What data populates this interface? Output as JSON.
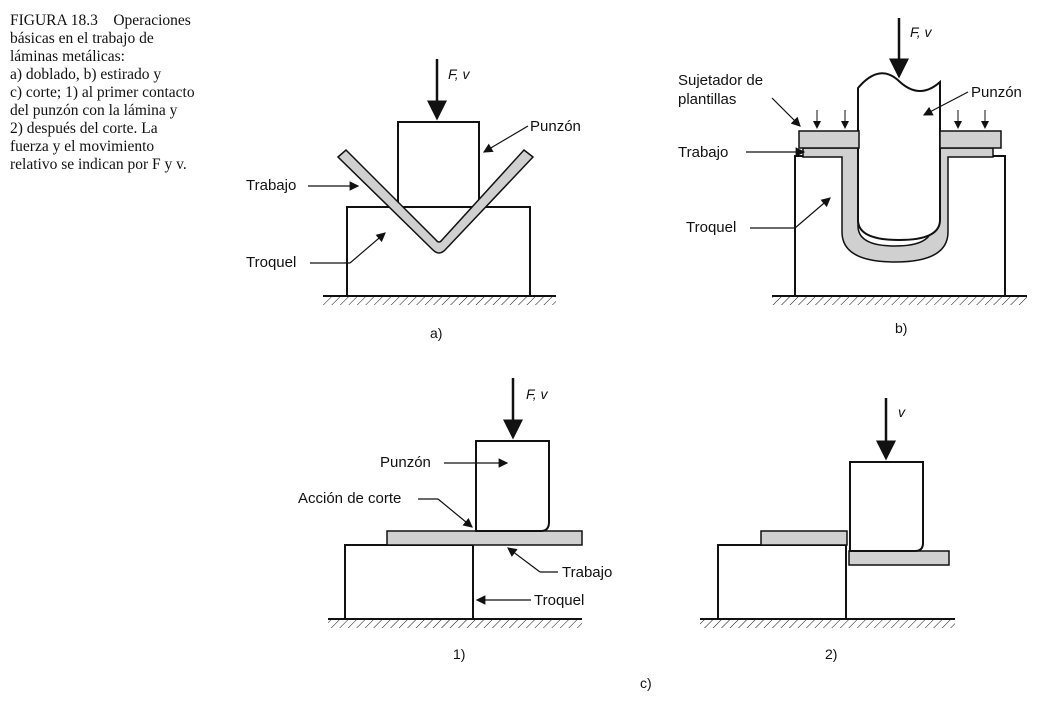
{
  "caption": {
    "figure": "FIGURA 18.3",
    "line1_title": "Operaciones",
    "line2": "básicas en el trabajo de",
    "line3": "láminas metálicas:",
    "line4": "a) doblado, b) estirado y",
    "line5": "c) corte; 1) al primer contacto",
    "line6": "del punzón con la lámina y",
    "line7": "2) después del corte. La",
    "line8": "fuerza y el movimiento",
    "line9": "relativo se indican por F y v."
  },
  "panel_a": {
    "force_label": "F, v",
    "punch_label": "Punzón",
    "work_label": "Trabajo",
    "die_label": "Troquel",
    "sublabel": "a)"
  },
  "panel_b": {
    "force_label": "F, v",
    "holder_label_1": "Sujetador de",
    "holder_label_2": "plantillas",
    "punch_label": "Punzón",
    "work_label": "Trabajo",
    "die_label": "Troquel",
    "sublabel": "b)"
  },
  "panel_c1": {
    "force_label": "F, v",
    "punch_label": "Punzón",
    "cut_label": "Acción de corte",
    "work_label": "Trabajo",
    "die_label": "Troquel",
    "sublabel": "1)"
  },
  "panel_c2": {
    "force_label": "v",
    "sublabel": "2)"
  },
  "group_c_label": "c)",
  "colors": {
    "ink": "#111111",
    "sheet": "#d0d0d0"
  }
}
